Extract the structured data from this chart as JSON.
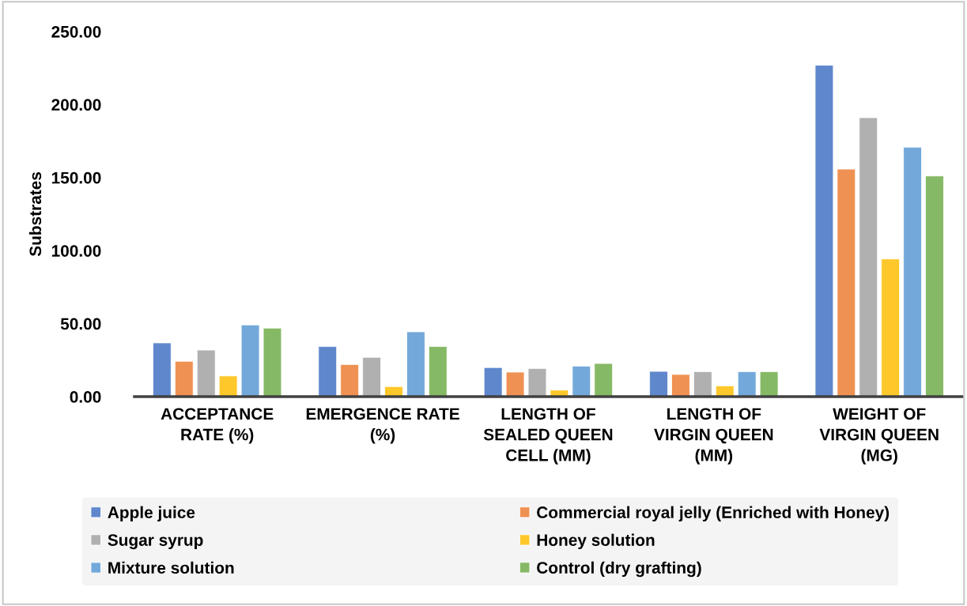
{
  "chart_data": {
    "type": "bar",
    "ylabel": "Substrates",
    "categories": [
      "ACCEPTANCE RATE (%)",
      "EMERGENCE RATE (%)",
      "LENGTH OF SEALED QUEEN CELL (MM)",
      "LENGTH OF VIRGIN QUEEN (MM)",
      "WEIGHT OF VIRGIN QUEEN (MG)"
    ],
    "series": [
      {
        "name": "Apple juice",
        "color": "#5f87cc",
        "values": [
          36.8,
          34.3,
          19.9,
          17.3,
          226.9
        ]
      },
      {
        "name": "Commercial royal jelly (Enriched with Honey)",
        "color": "#ef9152",
        "values": [
          24.2,
          22.0,
          16.8,
          15.2,
          155.8
        ]
      },
      {
        "name": "Sugar syrup",
        "color": "#b0b0b0",
        "values": [
          31.9,
          26.9,
          19.3,
          17.1,
          191.0
        ]
      },
      {
        "name": "Honey solution",
        "color": "#fec82a",
        "values": [
          14.2,
          6.9,
          4.5,
          7.4,
          94.3
        ]
      },
      {
        "name": "Mixture solution",
        "color": "#73a9da",
        "values": [
          49.1,
          44.4,
          20.9,
          17.1,
          170.8
        ]
      },
      {
        "name": "Control (dry grafting)",
        "color": "#86b965",
        "values": [
          46.9,
          34.3,
          22.7,
          17.1,
          151.1
        ]
      }
    ],
    "ylim": [
      0,
      250
    ],
    "yticks": [
      {
        "value": 0,
        "label": "0.00"
      },
      {
        "value": 50,
        "label": "50.00"
      },
      {
        "value": 100,
        "label": "100.00"
      },
      {
        "value": 150,
        "label": "150.00"
      },
      {
        "value": 200,
        "label": "200.00"
      },
      {
        "value": 250,
        "label": "250.00"
      }
    ],
    "grid": false,
    "legend": "bottom"
  }
}
